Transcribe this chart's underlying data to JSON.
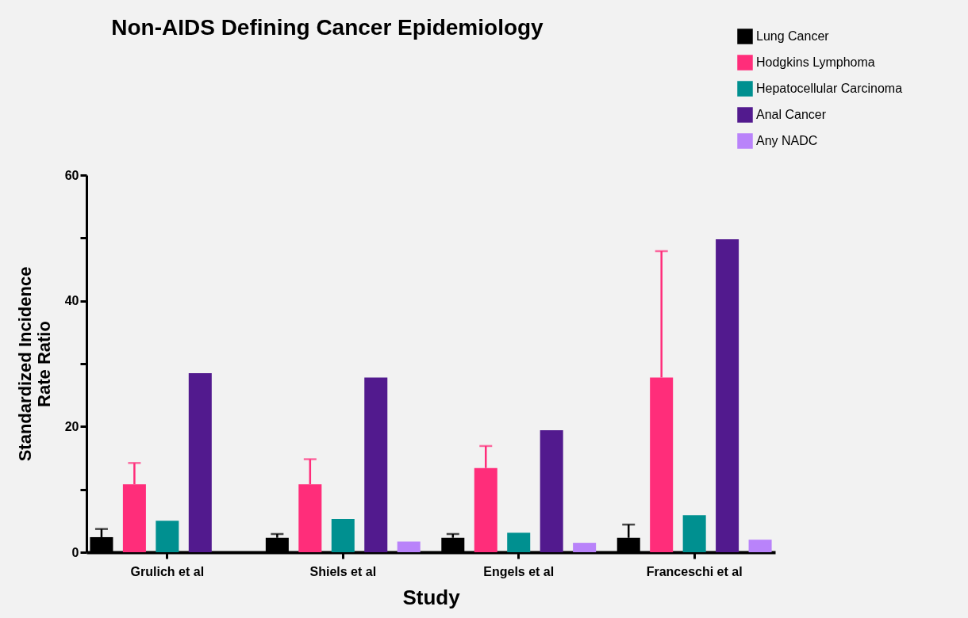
{
  "chart_data": {
    "type": "bar",
    "title": "Non-AIDS Defining Cancer Epidemiology",
    "xlabel": "Study",
    "ylabel": "Standardized Incidence Rate Ratio",
    "categories": [
      "Grulich et al",
      "Shiels et al",
      "Engels et al",
      "Franceschi et al"
    ],
    "series": [
      {
        "name": "Lung Cancer",
        "color": "#000000",
        "values": [
          2.4,
          2.3,
          2.3,
          2.3
        ],
        "errors": [
          [
            2.4,
            3.7
          ],
          [
            2.3,
            2.9
          ],
          [
            2.3,
            2.9
          ],
          [
            2.3,
            4.4
          ]
        ]
      },
      {
        "name": "Hodgkins Lymphoma",
        "color": "#ff2d7a",
        "values": [
          10.8,
          10.8,
          13.4,
          27.8
        ],
        "errors": [
          [
            10.8,
            14.2
          ],
          [
            10.8,
            14.8
          ],
          [
            13.4,
            16.9
          ],
          [
            27.8,
            47.9
          ]
        ]
      },
      {
        "name": "Hepatocellular Carcinoma",
        "color": "#009090",
        "values": [
          5.0,
          5.3,
          3.1,
          5.9
        ]
      },
      {
        "name": "Anal Cancer",
        "color": "#521a8e",
        "values": [
          28.5,
          27.8,
          19.4,
          49.8
        ]
      },
      {
        "name": "Any NADC",
        "color": "#b983fa",
        "values": [
          null,
          1.7,
          1.5,
          2.0
        ]
      }
    ],
    "ylim": [
      0,
      60
    ],
    "yticks": [
      0,
      {
        "value": 10,
        "label": null
      },
      20,
      {
        "value": 30,
        "label": null
      },
      40,
      {
        "value": 50,
        "label": null
      },
      60
    ],
    "grid": false,
    "legend": "top right"
  }
}
